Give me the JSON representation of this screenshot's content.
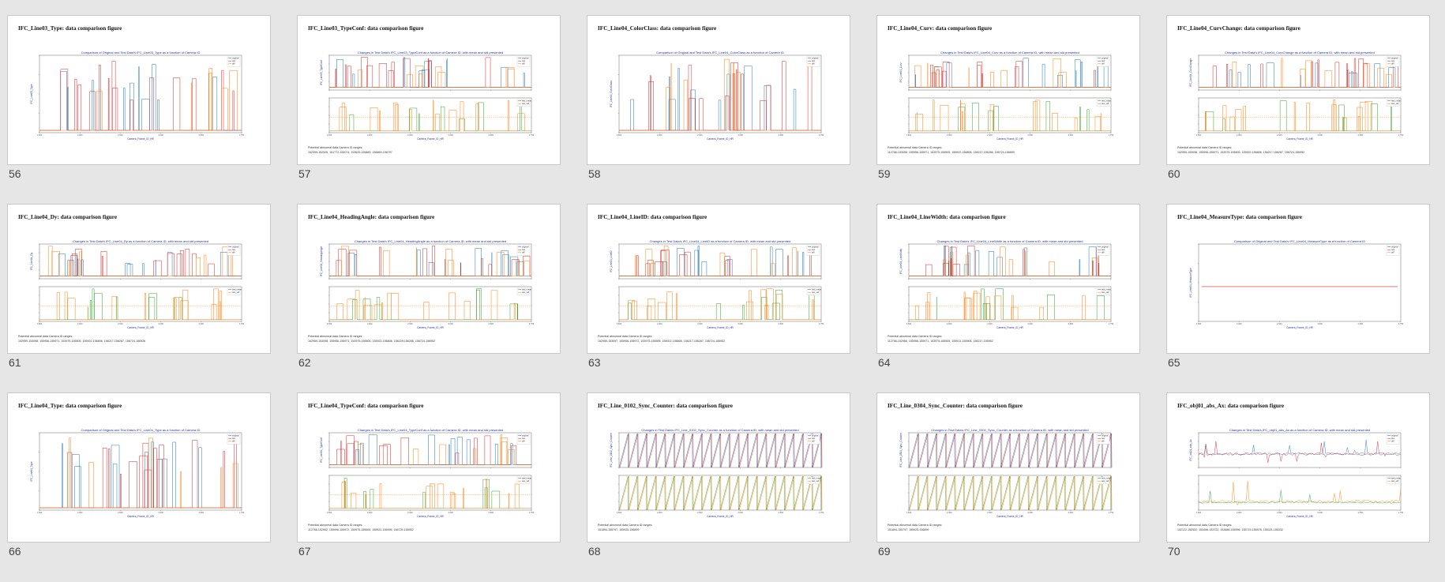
{
  "colors": {
    "original": "#1f77b4",
    "test": "#d62728",
    "diff": "#ff7f0e",
    "mean": "#2ca02c",
    "title": "#1f2ea8"
  },
  "slides": [
    {
      "number": "56",
      "title": "IFC_Line03_Type: data comparison figure",
      "plot_title": "Comparison of Original and Test Data's IFC_Line03_Type as a function of Camera ID",
      "ylabel": "IFC_Line03_Type",
      "xlabel": "Camera_Frame_ID_HR",
      "kind": "single",
      "legend": [
        "original",
        "test",
        "diff"
      ],
      "abnormal": []
    },
    {
      "number": "57",
      "title": "IFC_Line03_TypeConf: data comparison figure",
      "plot_title": "Changes in Test Data's IFC_Line03_TypeConf as a function of Camera ID, with mean and std presented",
      "ylabel": "IFC_Line03_TypeConf",
      "xlabel": "Camera_Frame_ID_HR",
      "kind": "double",
      "legend": [
        "original",
        "test",
        "diff"
      ],
      "legend2": [
        "test_mean",
        "test_std"
      ],
      "abnormal": [
        "Potential abnormal data Camera ID ranges:",
        "152959-152526, 151772-154074, 153629-155883, 156869-156797"
      ]
    },
    {
      "number": "58",
      "title": "IFC_Line04_ColorClass: data comparison figure",
      "plot_title": "Comparison of Original and Test Data's IFC_Line04_ColorClass as a function of Camera ID",
      "ylabel": "IFC_Line04_ColorClass",
      "xlabel": "Camera_Frame_ID_HR",
      "kind": "single",
      "legend": [
        "original",
        "test",
        "diff"
      ],
      "abnormal": []
    },
    {
      "number": "59",
      "title": "IFC_Line04_Curv: data comparison figure",
      "plot_title": "Changes in Test Data's IFC_Line04_Curv as a function of Camera ID, with mean and std presented",
      "ylabel": "IFC_Line04_Curv",
      "xlabel": "Camera_Frame_ID_HR",
      "kind": "double",
      "legend": [
        "original",
        "test",
        "diff"
      ],
      "legend2": [
        "test_mean",
        "test_std"
      ],
      "abnormal": [
        "Potential abnormal data Camera ID ranges:",
        "112766-153098, 155956-155971, 153975-155505, 155922-156806, 156217-156286, 156724-156899"
      ]
    },
    {
      "number": "60",
      "title": "IFC_Line04_CurvChange: data comparison figure",
      "plot_title": "Changes in Test Data's IFC_Line04_CurvChange as a function of Camera ID, with mean and std presented",
      "ylabel": "IFC_Line04_CurvChange",
      "xlabel": "Camera_Frame_ID_HR",
      "kind": "double",
      "legend": [
        "original",
        "test",
        "diff"
      ],
      "legend2": [
        "test_mean",
        "test_std"
      ],
      "abnormal": [
        "Potential abnormal data Camera ID ranges:",
        "152959-153098, 155996-155971, 153975-155505, 155922-156806, 156217-156287, 156724-156952"
      ]
    },
    {
      "number": "61",
      "title": "IFC_Line04_Dy: data comparison figure",
      "plot_title": "Changes in Test Data's IFC_Line04_Dy as a function of Camera ID, with mean and std presented",
      "ylabel": "IFC_Line04_Dy",
      "xlabel": "Camera_Frame_ID_HR",
      "kind": "double",
      "legend": [
        "original",
        "test",
        "diff"
      ],
      "legend2": [
        "test_mean",
        "test_std"
      ],
      "abnormal": [
        "Potential abnormal data Camera ID ranges:",
        "152959-153098, 155956-155971, 153975-155505, 155922-156806, 156217-156287, 156724-156926"
      ]
    },
    {
      "number": "62",
      "title": "IFC_Line04_HeadingAngle: data comparison figure",
      "plot_title": "Changes in Test Data's IFC_Line04_HeadingAngle as a function of Camera ID, with mean and std presented",
      "ylabel": "IFC_Line04_HeadingAngle",
      "xlabel": "Camera_Frame_ID_HR",
      "kind": "double",
      "legend": [
        "original",
        "test",
        "diff"
      ],
      "legend2": [
        "test_mean",
        "test_std"
      ],
      "abnormal": [
        "Potential abnormal data Camera ID ranges:",
        "152959-153098, 155956-155971, 153975-155505, 155922-156806, 156229-156286, 156724-156952"
      ]
    },
    {
      "number": "63",
      "title": "IFC_Line04_LineID: data comparison figure",
      "plot_title": "Changes in Test Data's IFC_Line04_LineID as a function of Camera ID, with mean and std presented",
      "ylabel": "IFC_Line04_LineID",
      "xlabel": "Camera_Frame_ID_HR",
      "kind": "double",
      "legend": [
        "original",
        "test",
        "diff"
      ],
      "legend2": [
        "test_mean",
        "test_std"
      ],
      "abnormal": [
        "Potential abnormal data Camera ID ranges:",
        "152959-153097, 155956-155972, 153975-155505, 155922-156806, 156217-156287, 156724-156952"
      ]
    },
    {
      "number": "64",
      "title": "IFC_Line04_LineWidth: data comparison figure",
      "plot_title": "Changes in Test Data's IFC_Line04_LineWidth as a function of Camera ID, with mean and std presented",
      "ylabel": "IFC_Line04_LineWidth",
      "xlabel": "Camera_Frame_ID_HR",
      "kind": "double",
      "legend": [
        "original",
        "test",
        "diff"
      ],
      "legend2": [
        "test_mean",
        "test_std"
      ],
      "abnormal": [
        "Potential abnormal data Camera ID ranges:",
        "112766-152966, 155956-155971, 153975-155505, 155913-155906, 156217-156952"
      ]
    },
    {
      "number": "65",
      "title": "IFC_Line04_MeasureType: data comparison figure",
      "plot_title": "Comparison of Original and Test Data's IFC_Line04_MeasureType as a function of Camera ID",
      "ylabel": "IFC_Line04_MeasureType",
      "xlabel": "Camera_Frame_ID_HR",
      "kind": "flat",
      "legend": [
        "original",
        "test",
        "diff"
      ],
      "abnormal": []
    },
    {
      "number": "66",
      "title": "IFC_Line04_Type: data comparison figure",
      "plot_title": "Comparison of Original and Test Data's IFC_Line04_Type as a function of Camera ID",
      "ylabel": "IFC_Line04_Type",
      "xlabel": "Camera_Frame_ID_HR",
      "kind": "single",
      "legend": [
        "original",
        "test",
        "diff"
      ],
      "abnormal": []
    },
    {
      "number": "67",
      "title": "IFC_Line04_TypeConf: data comparison figure",
      "plot_title": "Changes in Test Data's IFC_Line04_TypeConf as a function of Camera ID, with mean and std presented",
      "ylabel": "IFC_Line04_TypeConf",
      "xlabel": "Camera_Frame_ID_HR",
      "kind": "double",
      "legend": [
        "original",
        "test",
        "diff"
      ],
      "legend2": [
        "test_mean",
        "test_std"
      ],
      "abnormal": [
        "Potential abnormal data Camera ID ranges:",
        "112766-152952, 155996-155972, 153975-155505, 155922-155995, 156729-156952"
      ]
    },
    {
      "number": "68",
      "title": "IFC_Line_0102_Sync_Counter: data comparison figure",
      "plot_title": "Changes in Test Data's IFC_Line_0102_Sync_Counter as a function of Camera ID, with mean and std presented",
      "ylabel": "IFC_Line_0102_Sync_Counter",
      "xlabel": "Camera_Frame_ID_HR",
      "kind": "saw",
      "legend": [
        "original",
        "test",
        "diff"
      ],
      "legend2": [
        "test_mean",
        "test_std"
      ],
      "abnormal": [
        "Potential abnormal data Camera ID ranges:",
        "151894-155797, 155925-156899"
      ]
    },
    {
      "number": "69",
      "title": "IFC_Line_0304_Sync_Counter: data comparison figure",
      "plot_title": "Changes in Test Data's IFC_Line_0304_Sync_Counter as a function of Camera ID, with mean and std presented",
      "ylabel": "IFC_Line_0304_Sync_Counter",
      "xlabel": "Camera_Frame_ID_HR",
      "kind": "saw",
      "legend": [
        "original",
        "test",
        "diff"
      ],
      "legend2": [
        "test_mean",
        "test_std"
      ],
      "abnormal": [
        "Potential abnormal data Camera ID ranges:",
        "151894-155797, 155925-156899"
      ]
    },
    {
      "number": "70",
      "title": "IFC_obj01_abs_Ax: data comparison figure",
      "plot_title": "Changes in Test Data's IFC_obj01_abs_Ax as a function of Camera ID, with mean and std presented",
      "ylabel": "IFC_obj01_abs_Ax",
      "xlabel": "Camera_Frame_ID_HR",
      "kind": "ax",
      "legend": [
        "original",
        "test",
        "diff"
      ],
      "legend2": [
        "test_mean",
        "test_std"
      ],
      "abnormal": [
        "Potential abnormal data Camera ID ranges:",
        "152122-152522, 153456-153722, 153686-155996, 155719-155976, 155321-155332"
      ]
    }
  ]
}
